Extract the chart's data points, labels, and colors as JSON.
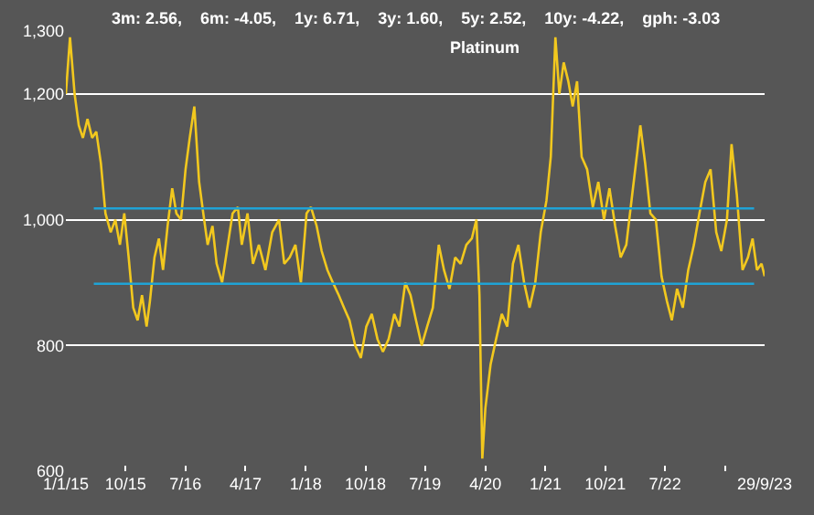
{
  "chart_data": {
    "type": "line",
    "title": "Platinum",
    "subtitle": "3m: 2.56,    6m: -4.05,    1y: 6.71,    3y: 1.60,    5y: 2.52,    10y: -4.22,    gph: -3.03",
    "x": [
      "2015-01-01",
      "2015-01-20",
      "2015-02-10",
      "2015-03-01",
      "2015-03-20",
      "2015-04-10",
      "2015-05-01",
      "2015-05-20",
      "2015-06-10",
      "2015-07-01",
      "2015-07-25",
      "2015-08-15",
      "2015-09-05",
      "2015-09-25",
      "2015-10-15",
      "2015-11-05",
      "2015-11-25",
      "2015-12-15",
      "2016-01-05",
      "2016-01-20",
      "2016-02-10",
      "2016-03-01",
      "2016-03-20",
      "2016-04-10",
      "2016-05-01",
      "2016-05-20",
      "2016-06-10",
      "2016-07-01",
      "2016-07-20",
      "2016-08-10",
      "2016-09-01",
      "2016-09-20",
      "2016-10-10",
      "2016-11-01",
      "2016-11-20",
      "2016-12-15",
      "2017-01-10",
      "2017-02-01",
      "2017-02-25",
      "2017-03-15",
      "2017-04-10",
      "2017-05-05",
      "2017-06-01",
      "2017-07-01",
      "2017-08-01",
      "2017-09-01",
      "2017-09-25",
      "2017-10-20",
      "2017-11-15",
      "2017-12-10",
      "2018-01-05",
      "2018-01-25",
      "2018-02-20",
      "2018-03-15",
      "2018-04-10",
      "2018-05-05",
      "2018-06-01",
      "2018-06-25",
      "2018-07-20",
      "2018-08-15",
      "2018-09-10",
      "2018-10-05",
      "2018-10-30",
      "2018-11-25",
      "2018-12-20",
      "2019-01-15",
      "2019-02-10",
      "2019-03-05",
      "2019-04-01",
      "2019-04-25",
      "2019-05-20",
      "2019-06-15",
      "2019-07-10",
      "2019-08-05",
      "2019-09-01",
      "2019-09-25",
      "2019-10-20",
      "2019-11-15",
      "2019-12-10",
      "2020-01-05",
      "2020-01-30",
      "2020-02-20",
      "2020-03-05",
      "2020-03-18",
      "2020-04-01",
      "2020-04-25",
      "2020-05-20",
      "2020-06-15",
      "2020-07-10",
      "2020-08-05",
      "2020-08-30",
      "2020-09-25",
      "2020-10-20",
      "2020-11-15",
      "2020-12-10",
      "2021-01-05",
      "2021-01-25",
      "2021-02-15",
      "2021-03-05",
      "2021-03-25",
      "2021-04-15",
      "2021-05-05",
      "2021-05-25",
      "2021-06-15",
      "2021-07-10",
      "2021-08-05",
      "2021-08-30",
      "2021-09-25",
      "2021-10-20",
      "2021-11-15",
      "2021-12-10",
      "2022-01-05",
      "2022-02-01",
      "2022-02-25",
      "2022-03-10",
      "2022-04-01",
      "2022-04-25",
      "2022-05-20",
      "2022-06-15",
      "2022-07-10",
      "2022-08-01",
      "2022-08-25",
      "2022-09-20",
      "2022-10-15",
      "2022-11-10",
      "2022-12-05",
      "2023-01-01",
      "2023-01-25",
      "2023-02-20",
      "2023-03-15",
      "2023-04-10",
      "2023-05-01",
      "2023-05-25",
      "2023-06-20",
      "2023-07-15",
      "2023-08-05",
      "2023-08-25",
      "2023-09-15",
      "2023-09-29"
    ],
    "series": [
      {
        "color": "#f2c81e",
        "values": [
          1200,
          1290,
          1200,
          1150,
          1130,
          1160,
          1130,
          1140,
          1090,
          1010,
          980,
          1000,
          960,
          1010,
          940,
          860,
          840,
          880,
          830,
          870,
          940,
          970,
          920,
          990,
          1050,
          1010,
          1000,
          1080,
          1130,
          1180,
          1060,
          1010,
          960,
          990,
          930,
          900,
          960,
          1010,
          1020,
          960,
          1010,
          930,
          960,
          920,
          980,
          1000,
          930,
          940,
          960,
          900,
          1010,
          1020,
          990,
          950,
          920,
          900,
          880,
          860,
          840,
          800,
          780,
          830,
          850,
          810,
          790,
          810,
          850,
          830,
          900,
          880,
          840,
          800,
          830,
          860,
          960,
          920,
          890,
          940,
          930,
          960,
          970,
          1000,
          880,
          620,
          700,
          770,
          810,
          850,
          830,
          930,
          960,
          900,
          860,
          900,
          980,
          1030,
          1100,
          1290,
          1200,
          1250,
          1220,
          1180,
          1220,
          1100,
          1080,
          1020,
          1060,
          1000,
          1050,
          990,
          940,
          960,
          1040,
          1110,
          1150,
          1090,
          1010,
          1000,
          910,
          870,
          840,
          890,
          860,
          920,
          960,
          1010,
          1060,
          1080,
          980,
          950,
          1000,
          1120,
          1040,
          920,
          940,
          970,
          920,
          930,
          910
        ]
      }
    ],
    "xlim": [
      "2015-01-01",
      "2023-09-29"
    ],
    "xticks": [
      {
        "value": "2015-01-01",
        "label": "1/1/15"
      },
      {
        "value": "2015-10-01",
        "label": "10/15"
      },
      {
        "value": "2016-07-01",
        "label": "7/16"
      },
      {
        "value": "2017-04-01",
        "label": "4/17"
      },
      {
        "value": "2018-01-01",
        "label": "1/18"
      },
      {
        "value": "2018-10-01",
        "label": "10/18"
      },
      {
        "value": "2019-07-01",
        "label": "7/19"
      },
      {
        "value": "2020-04-01",
        "label": "4/20"
      },
      {
        "value": "2021-01-01",
        "label": "1/21"
      },
      {
        "value": "2021-10-01",
        "label": "10/21"
      },
      {
        "value": "2022-07-01",
        "label": "7/22"
      },
      {
        "value": "2023-04-01",
        "label": null
      },
      {
        "value": "2023-09-29",
        "label": "29/9/23"
      }
    ],
    "ylim": [
      600,
      1300
    ],
    "yticks": [
      {
        "value": 600,
        "label": "600"
      },
      {
        "value": 800,
        "label": "800"
      },
      {
        "value": 1000,
        "label": "1,000"
      },
      {
        "value": 1200,
        "label": "1,200"
      },
      {
        "value": 1300,
        "label": "1,300"
      }
    ],
    "grid": "y",
    "ref_lines": [
      {
        "axis": "y",
        "value": 1018,
        "color": "#1fa3d6"
      },
      {
        "axis": "y",
        "value": 898,
        "color": "#1fa3d6"
      }
    ]
  }
}
